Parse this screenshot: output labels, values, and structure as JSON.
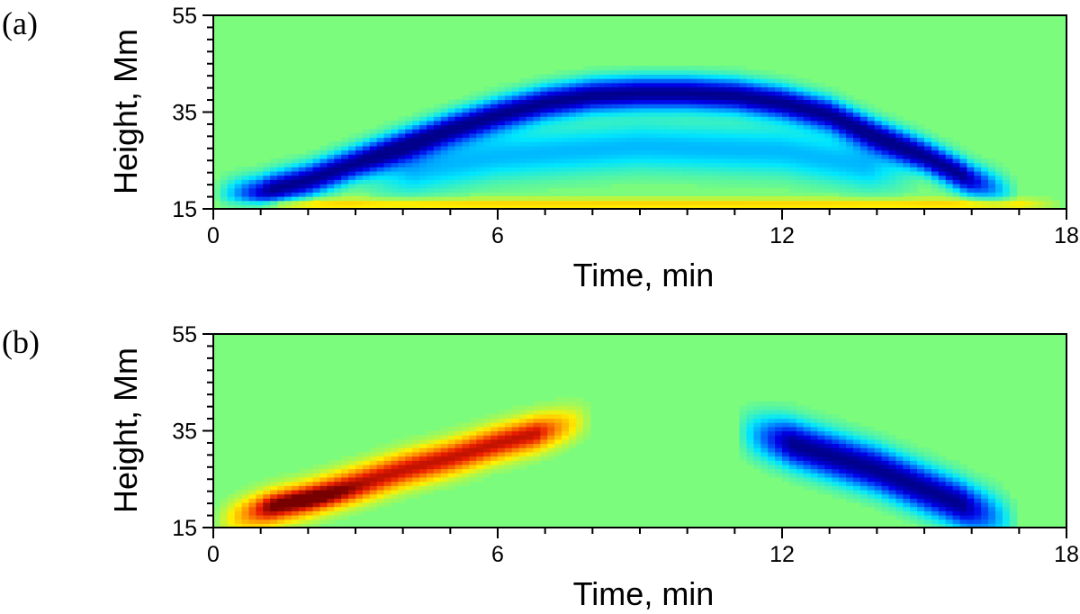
{
  "chart_data": [
    {
      "type": "heatmap",
      "panel_label": "(a)",
      "xlabel": "Time, min",
      "ylabel": "Height, Mm",
      "xlim": [
        0,
        18
      ],
      "ylim": [
        15,
        55
      ],
      "xticks": [
        0,
        6,
        12,
        18
      ],
      "yticks": [
        15,
        35,
        55
      ],
      "xtick_labels": [
        "0",
        "6",
        "12",
        "18"
      ],
      "ytick_labels": [
        "15",
        "35",
        "55"
      ],
      "background_color": "#7cfc7c",
      "features": [
        {
          "name": "negative arc ridge",
          "sign": -1,
          "path": [
            [
              0,
              18
            ],
            [
              1,
              18.5
            ],
            [
              2,
              21
            ],
            [
              3,
              24.5
            ],
            [
              4,
              28
            ],
            [
              5,
              31.5
            ],
            [
              6,
              34.5
            ],
            [
              7,
              37
            ],
            [
              8,
              38.5
            ],
            [
              9,
              39
            ],
            [
              10,
              39
            ],
            [
              11,
              38.5
            ],
            [
              12,
              37
            ],
            [
              13,
              34.5
            ],
            [
              14,
              30
            ],
            [
              15,
              26
            ],
            [
              16,
              21
            ],
            [
              17,
              18
            ]
          ],
          "thickness_mm": 3.2
        },
        {
          "name": "faint inner halo",
          "sign": -0.35,
          "path": [
            [
              3,
              21
            ],
            [
              6,
              26
            ],
            [
              9,
              28
            ],
            [
              12,
              27
            ],
            [
              15,
              22
            ]
          ],
          "thickness_mm": 5
        },
        {
          "name": "bottom positive band",
          "sign": 0.35,
          "path": [
            [
              0,
              16
            ],
            [
              9,
              16
            ],
            [
              18,
              16
            ]
          ],
          "thickness_mm": 1.2
        }
      ]
    },
    {
      "type": "heatmap",
      "panel_label": "(b)",
      "xlabel": "Time, min",
      "ylabel": "Height, Mm",
      "xlim": [
        0,
        18
      ],
      "ylim": [
        15,
        55
      ],
      "xticks": [
        0,
        6,
        12,
        18
      ],
      "yticks": [
        15,
        35,
        55
      ],
      "xtick_labels": [
        "0",
        "6",
        "12",
        "18"
      ],
      "ytick_labels": [
        "15",
        "35",
        "55"
      ],
      "background_color": "#7cfc7c",
      "features": [
        {
          "name": "positive rising streak",
          "sign": 1,
          "path": [
            [
              0,
              16
            ],
            [
              1,
              18.5
            ],
            [
              2,
              21
            ],
            [
              3,
              24
            ],
            [
              4,
              27
            ],
            [
              5,
              29.5
            ],
            [
              6,
              32.5
            ],
            [
              7,
              35
            ],
            [
              8,
              37.5
            ]
          ],
          "peak": [
            2,
            21
          ],
          "thickness_mm": 3.5
        },
        {
          "name": "negative descending streak",
          "sign": -1,
          "path": [
            [
              11,
              35
            ],
            [
              12,
              33
            ],
            [
              13,
              30
            ],
            [
              14,
              27
            ],
            [
              15,
              23
            ],
            [
              16,
              19
            ],
            [
              17,
              16
            ]
          ],
          "thickness_mm": 4.5
        }
      ]
    }
  ]
}
